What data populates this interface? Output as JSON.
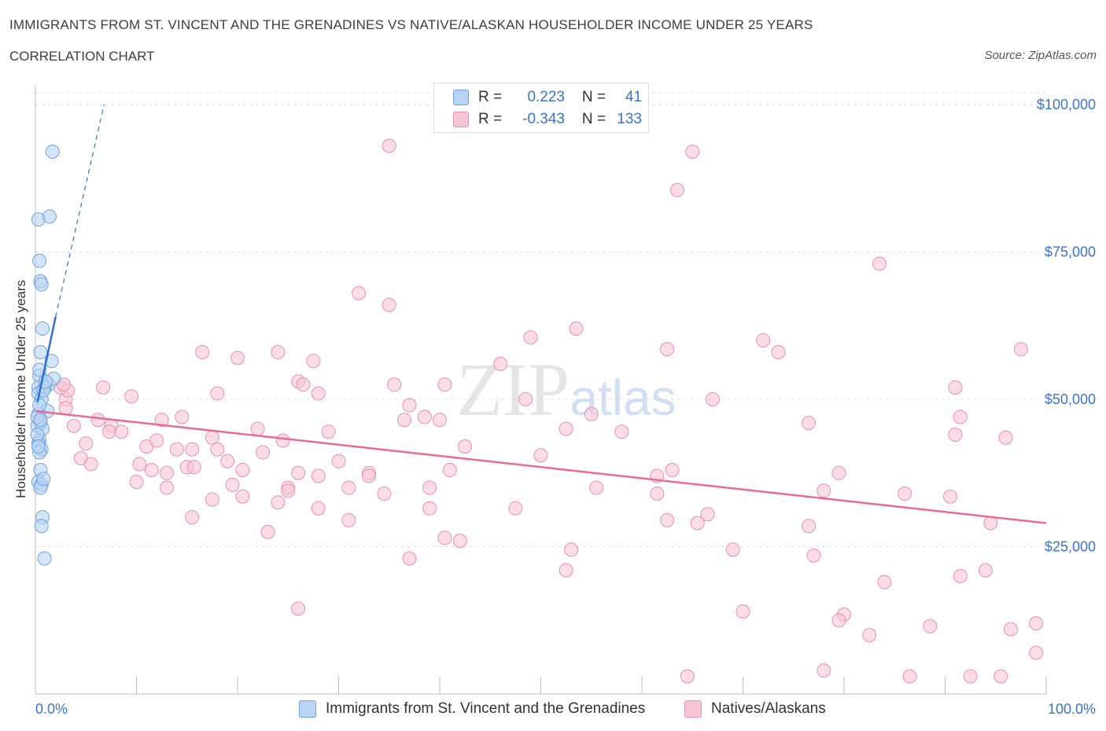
{
  "header": {
    "title": "IMMIGRANTS FROM ST. VINCENT AND THE GRENADINES VS NATIVE/ALASKAN HOUSEHOLDER INCOME UNDER 25 YEARS",
    "subtitle": "CORRELATION CHART",
    "source": "Source: ZipAtlas.com"
  },
  "watermark": "ZIPatlas",
  "legend": {
    "series1": {
      "r_label": "R =",
      "r_value": "0.223",
      "n_label": "N =",
      "n_value": "41"
    },
    "series2": {
      "r_label": "R =",
      "r_value": "-0.343",
      "n_label": "N =",
      "n_value": "133"
    }
  },
  "bottom_legend": {
    "series1": "Immigrants from St. Vincent and the Grenadines",
    "series2": "Natives/Alaskans"
  },
  "colors": {
    "series1": "#6fa1e0",
    "series1_fill": "#b9d3f4",
    "series1_line": "#2e6fd6",
    "series2": "#ea8fae",
    "series2_fill": "#f7c6d6",
    "series2_line": "#e66b97",
    "axis_text": "#3a73c9",
    "grid": "#dddddd"
  },
  "chart_data": {
    "type": "scatter",
    "title": "IMMIGRANTS FROM ST. VINCENT AND THE GRENADINES VS NATIVE/ALASKAN HOUSEHOLDER INCOME UNDER 25 YEARS",
    "xlabel": "",
    "ylabel": "Householder Income Under 25 years",
    "xlim": [
      0,
      100
    ],
    "ylim": [
      0,
      100000
    ],
    "x_tick_labels": [
      "0.0%",
      "100.0%"
    ],
    "y_ticks": [
      25000,
      50000,
      75000,
      100000
    ],
    "y_tick_labels": [
      "$25,000",
      "$50,000",
      "$75,000",
      "$100,000"
    ],
    "grid": true,
    "legend_position": "top-center",
    "series": [
      {
        "name": "Immigrants from St. Vincent and the Grenadines",
        "trend": {
          "x": [
            0.2,
            2.0
          ],
          "y": [
            49500,
            64000
          ],
          "dashed_extension_to": [
            6.8,
            100000
          ]
        },
        "points": [
          [
            1.7,
            92000
          ],
          [
            0.3,
            80500
          ],
          [
            1.4,
            81000
          ],
          [
            0.4,
            73500
          ],
          [
            0.5,
            70000
          ],
          [
            0.6,
            69500
          ],
          [
            0.7,
            62000
          ],
          [
            0.5,
            58000
          ],
          [
            1.6,
            56500
          ],
          [
            0.4,
            54000
          ],
          [
            0.3,
            52000
          ],
          [
            1.3,
            52500
          ],
          [
            1.8,
            53500
          ],
          [
            0.9,
            52000
          ],
          [
            0.3,
            51000
          ],
          [
            0.6,
            50000
          ],
          [
            1.2,
            48000
          ],
          [
            0.3,
            47500
          ],
          [
            0.5,
            46000
          ],
          [
            0.2,
            45500
          ],
          [
            0.7,
            45000
          ],
          [
            0.4,
            43000
          ],
          [
            0.3,
            42500
          ],
          [
            0.6,
            41500
          ],
          [
            0.4,
            41000
          ],
          [
            0.5,
            38000
          ],
          [
            0.3,
            36000
          ],
          [
            0.6,
            35500
          ],
          [
            0.5,
            35000
          ],
          [
            0.7,
            30000
          ],
          [
            0.6,
            28500
          ],
          [
            0.9,
            23000
          ],
          [
            0.2,
            47000
          ],
          [
            0.4,
            49000
          ],
          [
            0.8,
            51500
          ],
          [
            1.0,
            53000
          ],
          [
            0.2,
            44000
          ],
          [
            0.5,
            46500
          ],
          [
            0.3,
            42000
          ],
          [
            0.8,
            36500
          ],
          [
            0.4,
            55000
          ]
        ]
      },
      {
        "name": "Natives/Alaskans",
        "trend": {
          "x": [
            0,
            100
          ],
          "y": [
            48000,
            29000
          ]
        },
        "points": [
          [
            35.0,
            93000
          ],
          [
            65.0,
            92000
          ],
          [
            63.5,
            85500
          ],
          [
            83.5,
            73000
          ],
          [
            32.0,
            68000
          ],
          [
            35.0,
            66000
          ],
          [
            49.0,
            60500
          ],
          [
            53.5,
            62000
          ],
          [
            72.0,
            60000
          ],
          [
            97.5,
            58500
          ],
          [
            16.5,
            58000
          ],
          [
            24.0,
            58000
          ],
          [
            62.5,
            58500
          ],
          [
            73.5,
            58000
          ],
          [
            20.0,
            57000
          ],
          [
            27.5,
            56500
          ],
          [
            46.0,
            56000
          ],
          [
            26.0,
            53000
          ],
          [
            26.5,
            52500
          ],
          [
            40.5,
            52500
          ],
          [
            6.7,
            52000
          ],
          [
            91.0,
            52000
          ],
          [
            2.5,
            52000
          ],
          [
            3.0,
            50000
          ],
          [
            18.0,
            51000
          ],
          [
            28.0,
            51000
          ],
          [
            35.5,
            52500
          ],
          [
            9.5,
            50500
          ],
          [
            48.5,
            50000
          ],
          [
            67.0,
            50000
          ],
          [
            3.0,
            48500
          ],
          [
            37.0,
            49000
          ],
          [
            55.0,
            47500
          ],
          [
            14.5,
            47000
          ],
          [
            38.5,
            47000
          ],
          [
            6.2,
            46500
          ],
          [
            12.5,
            46500
          ],
          [
            36.5,
            46500
          ],
          [
            40.0,
            46500
          ],
          [
            76.5,
            46000
          ],
          [
            91.5,
            47000
          ],
          [
            3.8,
            45500
          ],
          [
            7.5,
            45500
          ],
          [
            22.0,
            45000
          ],
          [
            29.0,
            44500
          ],
          [
            52.5,
            45000
          ],
          [
            7.3,
            44500
          ],
          [
            91.0,
            44000
          ],
          [
            96.0,
            43500
          ],
          [
            17.5,
            43500
          ],
          [
            24.5,
            43000
          ],
          [
            11.0,
            42000
          ],
          [
            12.0,
            43000
          ],
          [
            5.0,
            42500
          ],
          [
            14.0,
            41500
          ],
          [
            15.5,
            41500
          ],
          [
            18.0,
            41500
          ],
          [
            22.5,
            41000
          ],
          [
            42.5,
            42000
          ],
          [
            50.0,
            40500
          ],
          [
            4.5,
            40000
          ],
          [
            10.3,
            39000
          ],
          [
            19.0,
            39500
          ],
          [
            30.0,
            39500
          ],
          [
            5.5,
            39000
          ],
          [
            15.0,
            38500
          ],
          [
            11.5,
            38000
          ],
          [
            13.0,
            37500
          ],
          [
            15.7,
            38500
          ],
          [
            20.5,
            38000
          ],
          [
            26.0,
            37500
          ],
          [
            33.0,
            37500
          ],
          [
            41.0,
            38000
          ],
          [
            61.5,
            37000
          ],
          [
            63.0,
            38000
          ],
          [
            79.5,
            37500
          ],
          [
            28.0,
            37000
          ],
          [
            33.0,
            37000
          ],
          [
            10.0,
            36000
          ],
          [
            19.5,
            35500
          ],
          [
            25.0,
            35000
          ],
          [
            31.0,
            35000
          ],
          [
            39.0,
            35000
          ],
          [
            55.5,
            35000
          ],
          [
            86.0,
            34000
          ],
          [
            90.5,
            33500
          ],
          [
            13.0,
            35000
          ],
          [
            25.0,
            34500
          ],
          [
            34.5,
            34000
          ],
          [
            61.5,
            34000
          ],
          [
            78.0,
            34500
          ],
          [
            20.5,
            33500
          ],
          [
            24.0,
            32500
          ],
          [
            28.0,
            31500
          ],
          [
            39.0,
            31500
          ],
          [
            47.5,
            31500
          ],
          [
            15.5,
            30000
          ],
          [
            31.0,
            29500
          ],
          [
            62.5,
            29500
          ],
          [
            65.5,
            29000
          ],
          [
            76.5,
            28500
          ],
          [
            94.5,
            29000
          ],
          [
            23.0,
            27500
          ],
          [
            40.5,
            26500
          ],
          [
            42.0,
            26000
          ],
          [
            53.0,
            24500
          ],
          [
            69.0,
            24500
          ],
          [
            77.0,
            23500
          ],
          [
            37.0,
            23000
          ],
          [
            52.5,
            21000
          ],
          [
            94.0,
            21000
          ],
          [
            84.0,
            19000
          ],
          [
            91.5,
            20000
          ],
          [
            26.0,
            14500
          ],
          [
            70.0,
            14000
          ],
          [
            80.0,
            13500
          ],
          [
            79.5,
            12500
          ],
          [
            88.5,
            11500
          ],
          [
            96.5,
            11000
          ],
          [
            99.0,
            12000
          ],
          [
            82.5,
            10000
          ],
          [
            99.0,
            7000
          ],
          [
            78.0,
            4000
          ],
          [
            64.5,
            3000
          ],
          [
            86.5,
            3000
          ],
          [
            92.5,
            3000
          ],
          [
            95.5,
            3000
          ],
          [
            17.5,
            33000
          ],
          [
            66.5,
            30500
          ],
          [
            58.0,
            44500
          ],
          [
            3.2,
            51500
          ],
          [
            2.8,
            52500
          ],
          [
            8.5,
            44500
          ]
        ]
      }
    ]
  }
}
